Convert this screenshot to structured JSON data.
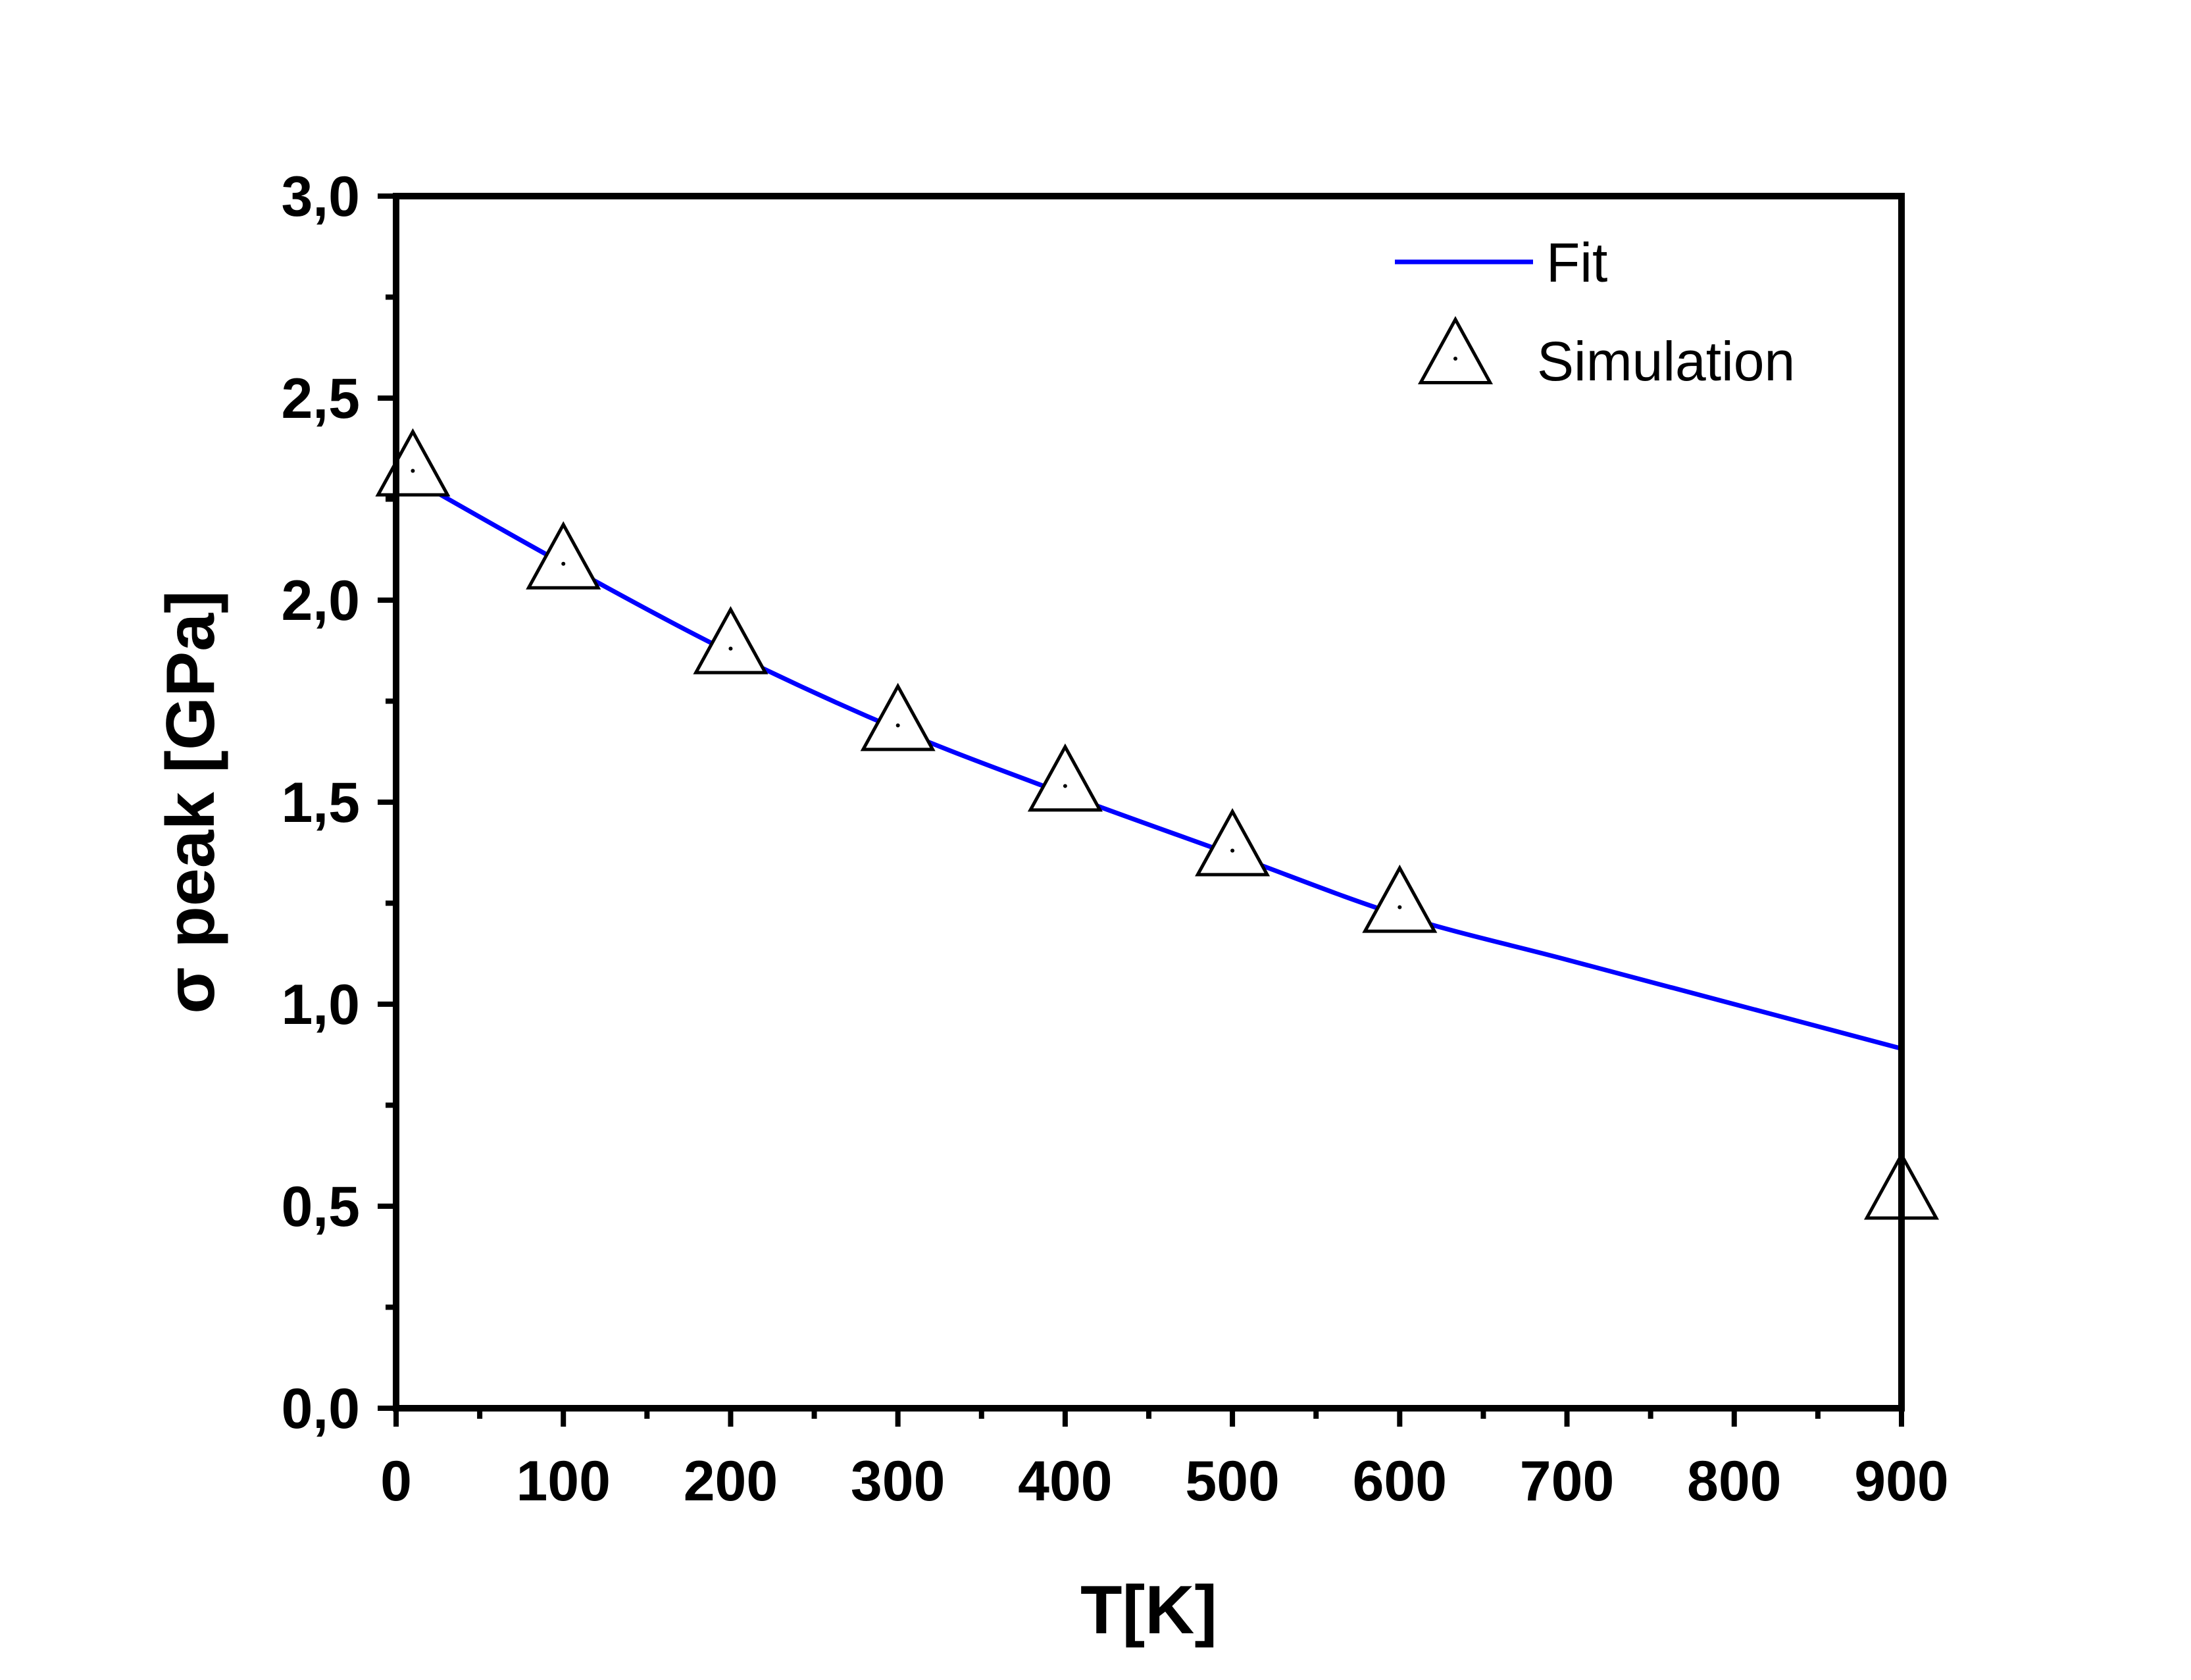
{
  "chart_data": {
    "type": "line",
    "xlabel": "T[K]",
    "ylabel": "σ peak [GPa]",
    "xlim": [
      0,
      900
    ],
    "ylim": [
      0.0,
      3.0
    ],
    "x_ticks": [
      "0",
      "100",
      "200",
      "300",
      "400",
      "500",
      "600",
      "700",
      "800",
      "900"
    ],
    "y_ticks": [
      "0,0",
      "0,5",
      "1,0",
      "1,5",
      "2,0",
      "2,5",
      "3,0"
    ],
    "grid": false,
    "legend_position": "top-right",
    "series": [
      {
        "name": "Fit",
        "kind": "line",
        "color": "#0000ff",
        "x": [
          10,
          100,
          200,
          300,
          400,
          500,
          600,
          700,
          800,
          900
        ],
        "y": [
          2.3,
          2.09,
          1.87,
          1.68,
          1.52,
          1.37,
          1.22,
          1.11,
          1.0,
          0.89
        ]
      },
      {
        "name": "Simulation",
        "kind": "scatter",
        "marker": "open-triangle",
        "color": "#000000",
        "x": [
          10,
          100,
          200,
          300,
          400,
          500,
          600,
          900
        ],
        "y": [
          2.32,
          2.09,
          1.88,
          1.69,
          1.54,
          1.38,
          1.24,
          0.53
        ]
      }
    ]
  }
}
